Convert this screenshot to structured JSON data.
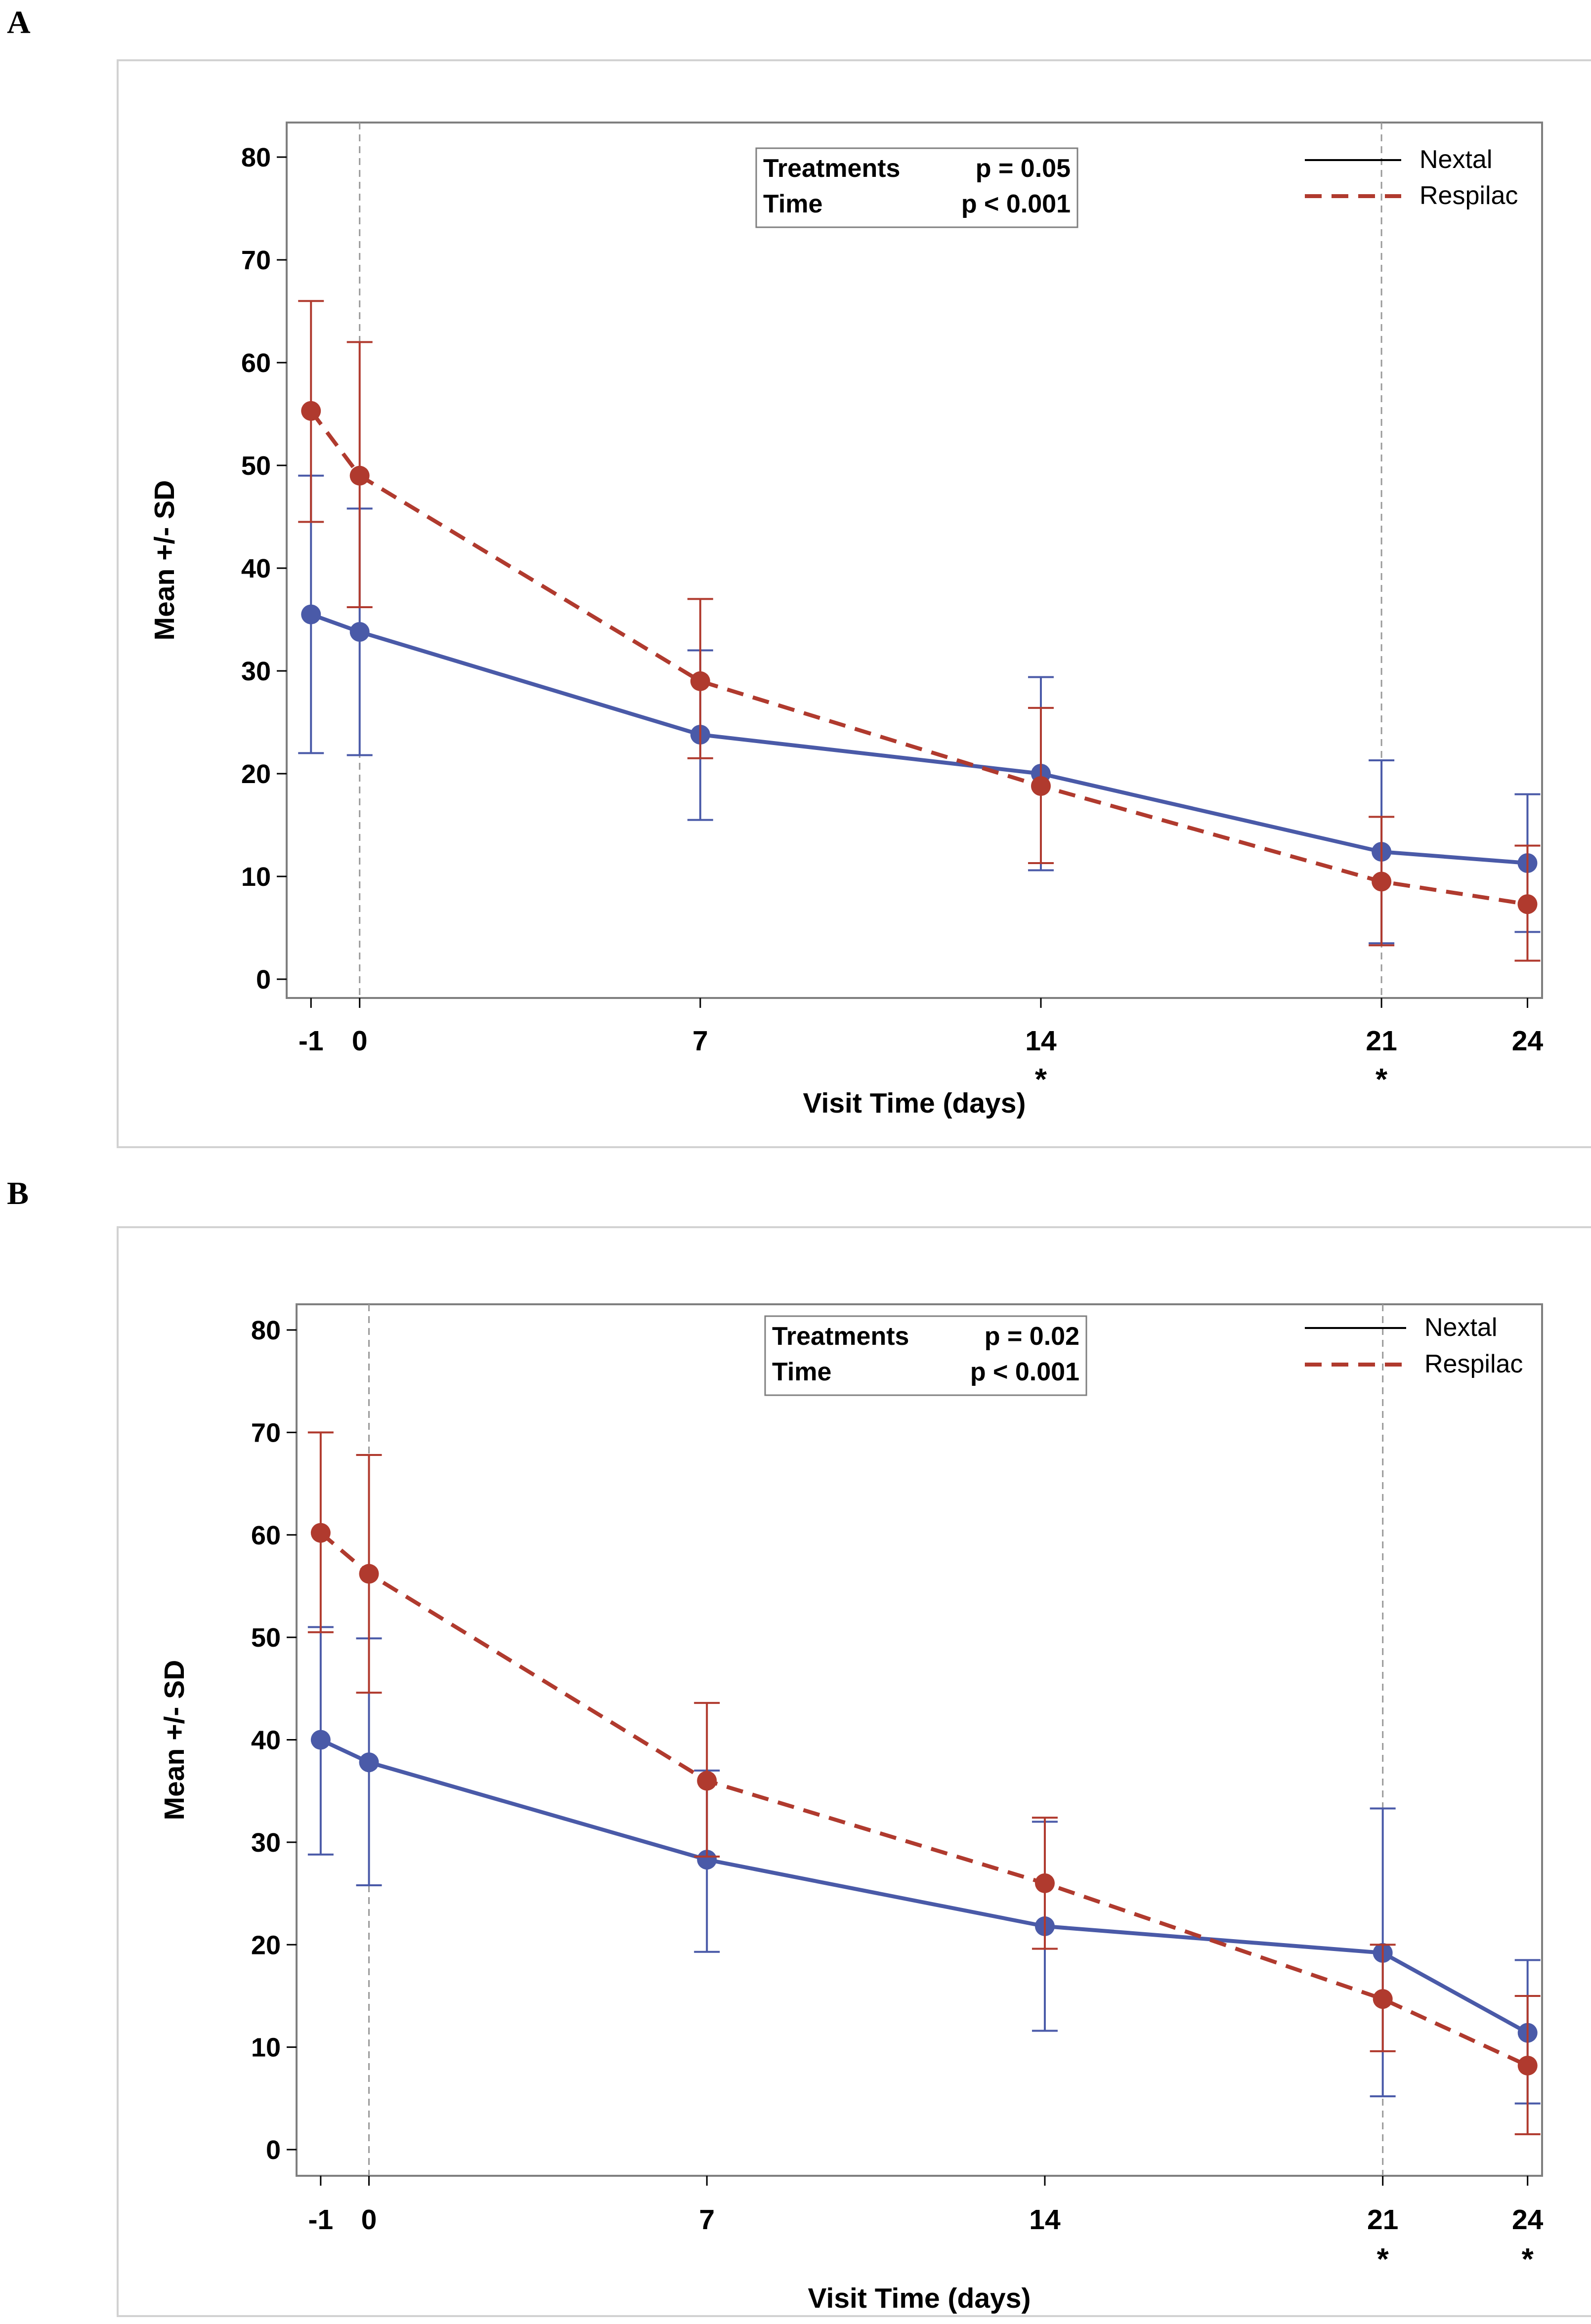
{
  "panels": [
    {
      "letter": "A",
      "chart_data": {
        "type": "line",
        "title": "",
        "xlabel": "Visit Time (days)",
        "ylabel": "Mean +/- SD",
        "x": [
          -1,
          0,
          7,
          14,
          21,
          24
        ],
        "x_tick_labels": [
          "-1",
          "0",
          "7",
          "14",
          "21",
          "24"
        ],
        "xlim": [
          -1.5,
          24.3
        ],
        "ylim": [
          -2,
          82
        ],
        "y_ticks": [
          0,
          10,
          20,
          30,
          40,
          50,
          60,
          70,
          80
        ],
        "reference_lines_x": [
          0,
          21
        ],
        "significance": [
          {
            "x": 14,
            "label": "*"
          },
          {
            "x": 21,
            "label": "*"
          }
        ],
        "series": [
          {
            "name": "Nextal",
            "style": "solid",
            "color": "#4a5aa8",
            "values": [
              35.5,
              33.8,
              23.8,
              20.0,
              12.4,
              11.3
            ],
            "upper": [
              49.0,
              45.8,
              32.0,
              29.4,
              21.3,
              18.0
            ],
            "lower": [
              22.0,
              21.8,
              15.5,
              10.6,
              3.5,
              4.6
            ]
          },
          {
            "name": "Respilac",
            "style": "dashed",
            "color": "#b03a2e",
            "values": [
              55.3,
              49.0,
              29.0,
              18.8,
              9.5,
              7.3
            ],
            "upper": [
              66.0,
              62.0,
              37.0,
              26.4,
              15.8,
              13.0
            ],
            "lower": [
              44.5,
              36.2,
              21.5,
              11.3,
              3.3,
              1.8
            ]
          }
        ],
        "stats": [
          {
            "label": "Treatments",
            "value": "p  = 0.05"
          },
          {
            "label": "Time",
            "value": "p  < 0.001"
          }
        ],
        "legend_position": "top-right"
      }
    },
    {
      "letter": "B",
      "chart_data": {
        "type": "line",
        "title": "",
        "xlabel": "Visit Time (days)",
        "ylabel": "Mean +/- SD",
        "x": [
          -1,
          0,
          7,
          14,
          21,
          24
        ],
        "x_tick_labels": [
          "-1",
          "0",
          "7",
          "14",
          "21",
          "24"
        ],
        "xlim": [
          -1.5,
          24.3
        ],
        "ylim": [
          -2,
          82
        ],
        "y_ticks": [
          0,
          10,
          20,
          30,
          40,
          50,
          60,
          70,
          80
        ],
        "reference_lines_x": [
          0,
          21
        ],
        "significance": [
          {
            "x": 21,
            "label": "*"
          },
          {
            "x": 24,
            "label": "*"
          }
        ],
        "series": [
          {
            "name": "Nextal",
            "style": "solid",
            "color": "#4a5aa8",
            "values": [
              40.0,
              37.8,
              28.3,
              21.8,
              19.2,
              11.4
            ],
            "upper": [
              51.0,
              49.9,
              37.0,
              32.0,
              33.3,
              18.5
            ],
            "lower": [
              28.8,
              25.8,
              19.3,
              11.6,
              5.2,
              4.5
            ]
          },
          {
            "name": "Respilac",
            "style": "dashed",
            "color": "#b03a2e",
            "values": [
              60.2,
              56.2,
              36.0,
              26.0,
              14.7,
              8.2
            ],
            "upper": [
              70.0,
              67.8,
              43.6,
              32.4,
              20.0,
              15.0
            ],
            "lower": [
              50.5,
              44.6,
              28.6,
              19.6,
              9.6,
              1.5
            ]
          }
        ],
        "stats": [
          {
            "label": "Treatments",
            "value": "p  = 0.02"
          },
          {
            "label": "Time",
            "value": "p  < 0.001"
          }
        ],
        "legend_position": "top-right"
      }
    }
  ]
}
